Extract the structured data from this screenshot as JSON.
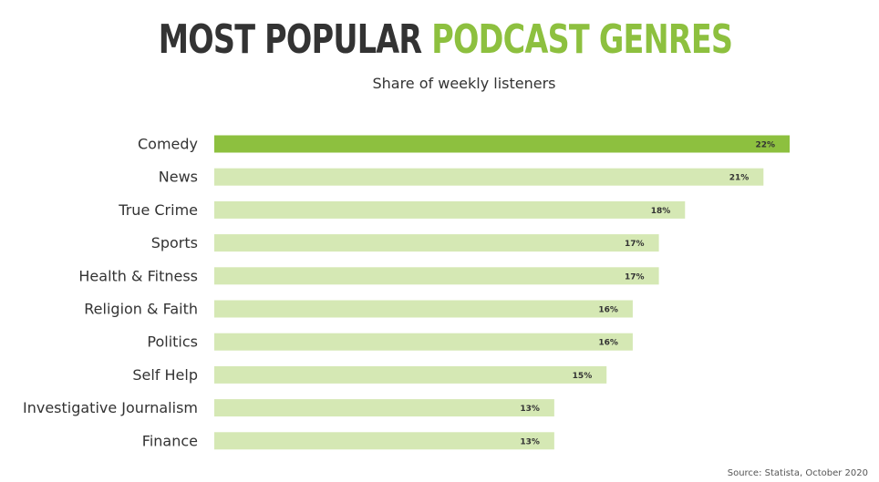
{
  "header": {
    "title_part1": "MOST POPULAR",
    "title_part2": "PODCAST GENRES",
    "subtitle": "Share of weekly listeners"
  },
  "footer": {
    "source": "Source: Statista, October 2020"
  },
  "colors": {
    "highlight": "#8dc03f",
    "bar": "#d5e8b4",
    "text": "#333333"
  },
  "chart_data": {
    "type": "bar",
    "orientation": "horizontal",
    "title": "MOST POPULAR PODCAST GENRES",
    "subtitle": "Share of weekly listeners",
    "categories": [
      "Comedy",
      "News",
      "True Crime",
      "Sports",
      "Health & Fitness",
      "Religion & Faith",
      "Politics",
      "Self Help",
      "Investigative Journalism",
      "Finance"
    ],
    "values": [
      22,
      21,
      18,
      17,
      17,
      16,
      16,
      15,
      13,
      13
    ],
    "value_labels": [
      "22%",
      "21%",
      "18%",
      "17%",
      "17%",
      "16%",
      "16%",
      "15%",
      "13%",
      "13%"
    ],
    "unit": "%",
    "highlighted_category": "Comedy",
    "grid": false,
    "legend": "none",
    "xlim": [
      0,
      22
    ]
  }
}
